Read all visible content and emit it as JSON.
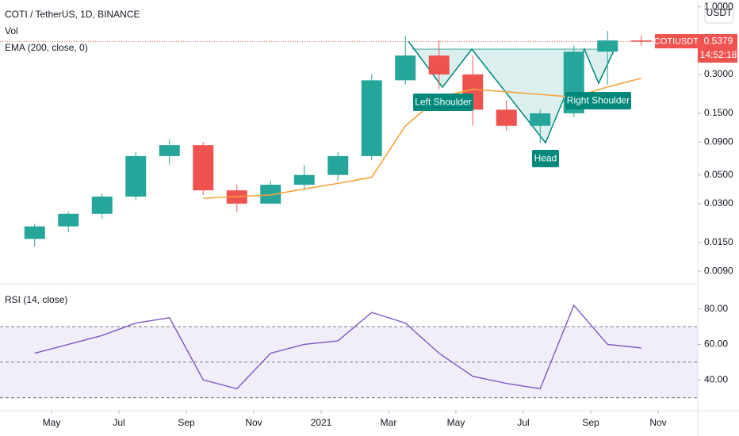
{
  "chart_data": [
    {
      "type": "candlestick",
      "title": "COTI / TetherUS, 1D, BINANCE",
      "volume_label": "Vol",
      "currency_label": "USDT",
      "symbol_label": "COTIUSDT",
      "countdown_label": "14:52:18",
      "annotations": [
        "Left Shoulder",
        "Head",
        "Right Shoulder"
      ],
      "log_scale": true,
      "up_color": "#26a69a",
      "down_color": "#ef5350",
      "x": [
        "2020-04",
        "2020-05",
        "2020-06",
        "2020-07",
        "2020-08",
        "2020-09",
        "2020-10",
        "2020-11",
        "2020-12",
        "2021-01",
        "2021-02",
        "2021-03",
        "2021-04",
        "2021-05",
        "2021-06",
        "2021-07",
        "2021-08",
        "2021-09",
        "2021-10"
      ],
      "open": [
        0.016,
        0.02,
        0.025,
        0.034,
        0.07,
        0.085,
        0.038,
        0.03,
        0.042,
        0.05,
        0.07,
        0.27,
        0.42,
        0.3,
        0.16,
        0.12,
        0.15,
        0.45,
        0.55
      ],
      "high": [
        0.021,
        0.026,
        0.036,
        0.075,
        0.095,
        0.09,
        0.042,
        0.045,
        0.06,
        0.075,
        0.3,
        0.6,
        0.55,
        0.42,
        0.19,
        0.16,
        0.5,
        0.65,
        0.6
      ],
      "low": [
        0.014,
        0.018,
        0.023,
        0.032,
        0.06,
        0.035,
        0.026,
        0.03,
        0.038,
        0.045,
        0.065,
        0.25,
        0.23,
        0.12,
        0.11,
        0.088,
        0.14,
        0.25,
        0.5
      ],
      "close": [
        0.02,
        0.025,
        0.034,
        0.07,
        0.085,
        0.038,
        0.03,
        0.042,
        0.05,
        0.07,
        0.27,
        0.42,
        0.3,
        0.16,
        0.12,
        0.15,
        0.45,
        0.55,
        0.5379
      ],
      "series": [
        {
          "name": "EMA (200, close, 0)",
          "color": "#f7a23b",
          "values": [
            null,
            null,
            null,
            null,
            null,
            0.033,
            0.034,
            0.035,
            0.039,
            0.043,
            0.048,
            0.12,
            0.2,
            0.23,
            0.22,
            0.21,
            0.2,
            0.24,
            0.28
          ]
        }
      ],
      "ylim": [
        0.0075,
        1.13
      ],
      "yticks": [
        {
          "value": 1,
          "label": "1.0000"
        },
        {
          "value": 0.3,
          "label": "0.3000"
        },
        {
          "value": 0.15,
          "label": "0.1500"
        },
        {
          "value": 0.09,
          "label": "0.0900"
        },
        {
          "value": 0.05,
          "label": "0.0500"
        },
        {
          "value": 0.03,
          "label": "0.0300"
        },
        {
          "value": 0.015,
          "label": "0.0150"
        },
        {
          "value": 0.009,
          "label": "0.0090"
        }
      ]
    },
    {
      "type": "line",
      "title": "RSI (14, close)",
      "color": "#7e57c2",
      "x": [
        "2020-04",
        "2020-05",
        "2020-06",
        "2020-07",
        "2020-08",
        "2020-09",
        "2020-10",
        "2020-11",
        "2020-12",
        "2021-01",
        "2021-02",
        "2021-03",
        "2021-04",
        "2021-05",
        "2021-06",
        "2021-07",
        "2021-08",
        "2021-09",
        "2021-10"
      ],
      "values": [
        55,
        60,
        65,
        72,
        75,
        40,
        35,
        55,
        60,
        62,
        78,
        72,
        55,
        42,
        38,
        35,
        82,
        60,
        58
      ],
      "upper_band": 70,
      "middle_line": 50,
      "lower_band": 30,
      "ylim": [
        24,
        91
      ],
      "yticks": [
        {
          "value": 80,
          "label": "80.00"
        },
        {
          "value": 60,
          "label": "60.00"
        },
        {
          "value": 40,
          "label": "40.00"
        }
      ],
      "xticks": [
        {
          "value": "2020-05",
          "label": "May"
        },
        {
          "value": "2020-07",
          "label": "Jul"
        },
        {
          "value": "2020-09",
          "label": "Sep"
        },
        {
          "value": "2020-11",
          "label": "Nov"
        },
        {
          "value": "2021-01",
          "label": "2021"
        },
        {
          "value": "2021-03",
          "label": "Mar"
        },
        {
          "value": "2021-05",
          "label": "May"
        },
        {
          "value": "2021-07",
          "label": "Jul"
        },
        {
          "value": "2021-09",
          "label": "Sep"
        },
        {
          "value": "2021-11",
          "label": "Nov"
        }
      ]
    }
  ]
}
